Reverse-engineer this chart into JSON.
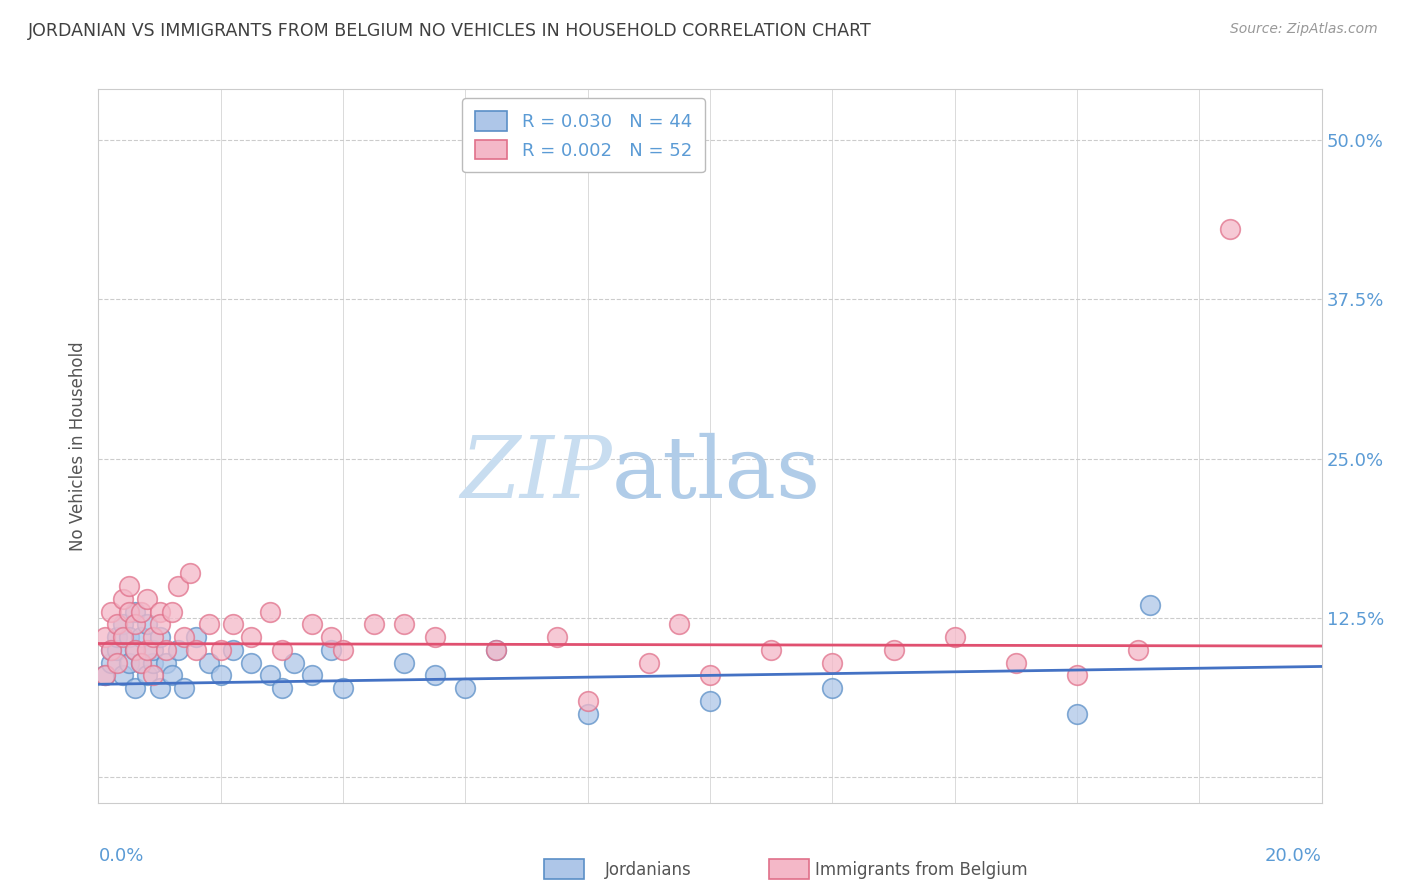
{
  "title": "JORDANIAN VS IMMIGRANTS FROM BELGIUM NO VEHICLES IN HOUSEHOLD CORRELATION CHART",
  "source": "Source: ZipAtlas.com",
  "ylabel": "No Vehicles in Household",
  "xlim": [
    0.0,
    0.2
  ],
  "ylim": [
    -0.02,
    0.54
  ],
  "yticks": [
    0.0,
    0.125,
    0.25,
    0.375,
    0.5
  ],
  "ytick_labels": [
    "",
    "12.5%",
    "25.0%",
    "37.5%",
    "50.0%"
  ],
  "xtick_positions": [
    0.0,
    0.02,
    0.04,
    0.06,
    0.08,
    0.1,
    0.12,
    0.14,
    0.16,
    0.18,
    0.2
  ],
  "legend_label_j": "R = 0.030   N = 44",
  "legend_label_b": "R = 0.002   N = 52",
  "color_j": "#aec6e8",
  "edge_j": "#5b8fc7",
  "color_b": "#f4b8c8",
  "edge_b": "#e0708a",
  "trend_j_color": "#4472c4",
  "trend_b_color": "#e05070",
  "axis_label_color": "#5b9bd5",
  "title_color": "#404040",
  "grid_color": "#cccccc",
  "bg_color": "#ffffff",
  "watermark_zip": "ZIP",
  "watermark_atlas": "atlas",
  "watermark_color_zip": "#c8ddf0",
  "watermark_color_atlas": "#b0cce8",
  "series_j_x": [
    0.001,
    0.002,
    0.002,
    0.003,
    0.003,
    0.004,
    0.004,
    0.005,
    0.005,
    0.006,
    0.006,
    0.006,
    0.007,
    0.007,
    0.008,
    0.008,
    0.009,
    0.009,
    0.01,
    0.01,
    0.011,
    0.012,
    0.013,
    0.014,
    0.016,
    0.018,
    0.02,
    0.022,
    0.025,
    0.028,
    0.03,
    0.032,
    0.035,
    0.038,
    0.04,
    0.05,
    0.055,
    0.06,
    0.065,
    0.08,
    0.1,
    0.12,
    0.16,
    0.172
  ],
  "series_j_y": [
    0.08,
    0.09,
    0.1,
    0.1,
    0.11,
    0.08,
    0.12,
    0.09,
    0.11,
    0.07,
    0.1,
    0.13,
    0.09,
    0.11,
    0.08,
    0.12,
    0.09,
    0.1,
    0.07,
    0.11,
    0.09,
    0.08,
    0.1,
    0.07,
    0.11,
    0.09,
    0.08,
    0.1,
    0.09,
    0.08,
    0.07,
    0.09,
    0.08,
    0.1,
    0.07,
    0.09,
    0.08,
    0.07,
    0.1,
    0.05,
    0.06,
    0.07,
    0.05,
    0.135
  ],
  "series_b_x": [
    0.001,
    0.001,
    0.002,
    0.002,
    0.003,
    0.003,
    0.004,
    0.004,
    0.005,
    0.005,
    0.006,
    0.006,
    0.007,
    0.007,
    0.008,
    0.008,
    0.009,
    0.009,
    0.01,
    0.01,
    0.011,
    0.012,
    0.013,
    0.014,
    0.015,
    0.016,
    0.018,
    0.02,
    0.022,
    0.025,
    0.028,
    0.03,
    0.035,
    0.038,
    0.04,
    0.045,
    0.05,
    0.055,
    0.065,
    0.075,
    0.08,
    0.09,
    0.095,
    0.1,
    0.11,
    0.12,
    0.13,
    0.14,
    0.15,
    0.16,
    0.17,
    0.185
  ],
  "series_b_y": [
    0.08,
    0.11,
    0.1,
    0.13,
    0.09,
    0.12,
    0.11,
    0.14,
    0.13,
    0.15,
    0.1,
    0.12,
    0.09,
    0.13,
    0.1,
    0.14,
    0.11,
    0.08,
    0.13,
    0.12,
    0.1,
    0.13,
    0.15,
    0.11,
    0.16,
    0.1,
    0.12,
    0.1,
    0.12,
    0.11,
    0.13,
    0.1,
    0.12,
    0.11,
    0.1,
    0.12,
    0.12,
    0.11,
    0.1,
    0.11,
    0.06,
    0.09,
    0.12,
    0.08,
    0.1,
    0.09,
    0.1,
    0.11,
    0.09,
    0.08,
    0.1,
    0.43
  ],
  "trend_j_x0": 0.0,
  "trend_j_x1": 0.2,
  "trend_j_y0": 0.073,
  "trend_j_y1": 0.087,
  "trend_b_x0": 0.0,
  "trend_b_x1": 0.2,
  "trend_b_y0": 0.105,
  "trend_b_y1": 0.103,
  "bottom_legend_j": "Jordanians",
  "bottom_legend_b": "Immigrants from Belgium"
}
